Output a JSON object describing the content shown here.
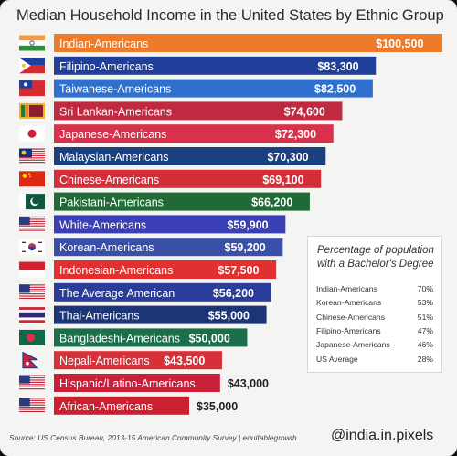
{
  "chart_data": {
    "type": "bar",
    "orientation": "horizontal",
    "title": "Median Household Income in the United States  by Ethnic Group",
    "categories": [
      "Indian-Americans",
      "Filipino-Americans",
      "Taiwanese-Americans",
      "Sri Lankan-Americans",
      "Japanese-Americans",
      "Malaysian-Americans",
      "Chinese-Americans",
      "Pakistani-Americans",
      "White-Americans",
      "Korean-Americans",
      "Indonesian-Americans",
      "The Average American",
      "Thai-Americans",
      "Bangladeshi-Americans",
      "Nepali-Americans",
      "Hispanic/Latino-Americans",
      "African-Americans"
    ],
    "values": [
      100500,
      83300,
      82500,
      74600,
      72300,
      70300,
      69100,
      66200,
      59900,
      59200,
      57500,
      56200,
      55000,
      50000,
      43500,
      43000,
      35000
    ],
    "value_labels": [
      "$100,500",
      "$83,300",
      "$82,500",
      "$74,600",
      "$72,300",
      "$70,300",
      "$69,100",
      "$66,200",
      "$59,900",
      "$59,200",
      "$57,500",
      "$56,200",
      "$55,000",
      "$50,000",
      "$43,500",
      "$43,000",
      "$35,000"
    ],
    "bar_colors": [
      "#ee7a2a",
      "#1f3f9a",
      "#2f6fce",
      "#c02a40",
      "#d9314b",
      "#1b3f7f",
      "#d52e3a",
      "#1f6a35",
      "#3a3fb5",
      "#3a4fa8",
      "#e03030",
      "#2a3d9a",
      "#1c3576",
      "#1a6e4a",
      "#d83038",
      "#c82038",
      "#cc2030"
    ],
    "flag_icons": [
      "india-flag-icon",
      "philippines-flag-icon",
      "taiwan-flag-icon",
      "sri-lanka-flag-icon",
      "japan-flag-icon",
      "malaysia-flag-icon",
      "china-flag-icon",
      "pakistan-flag-icon",
      "usa-flag-icon",
      "south-korea-flag-icon",
      "indonesia-flag-icon",
      "usa-flag-icon",
      "thailand-flag-icon",
      "bangladesh-flag-icon",
      "nepal-flag-icon",
      "usa-flag-icon",
      "usa-flag-icon"
    ],
    "xlim": [
      0,
      100500
    ],
    "grid": false,
    "legend": "none"
  },
  "education_box": {
    "title": "Percentage of population with a Bachelor's Degree",
    "rows": [
      {
        "group": "Indian-Americans",
        "pct": "70%"
      },
      {
        "group": "Korean-Americans",
        "pct": "53%"
      },
      {
        "group": "Chinese-Americans",
        "pct": "51%"
      },
      {
        "group": "Filipino-Americans",
        "pct": "47%"
      },
      {
        "group": "Japanese-Americans",
        "pct": "46%"
      },
      {
        "group": "US Average",
        "pct": "28%"
      }
    ]
  },
  "footer": {
    "source": "Source: US Census Bureau, 2013-15 American Community Survey | equitablegrowth",
    "handle": "@india.in.pixels"
  }
}
